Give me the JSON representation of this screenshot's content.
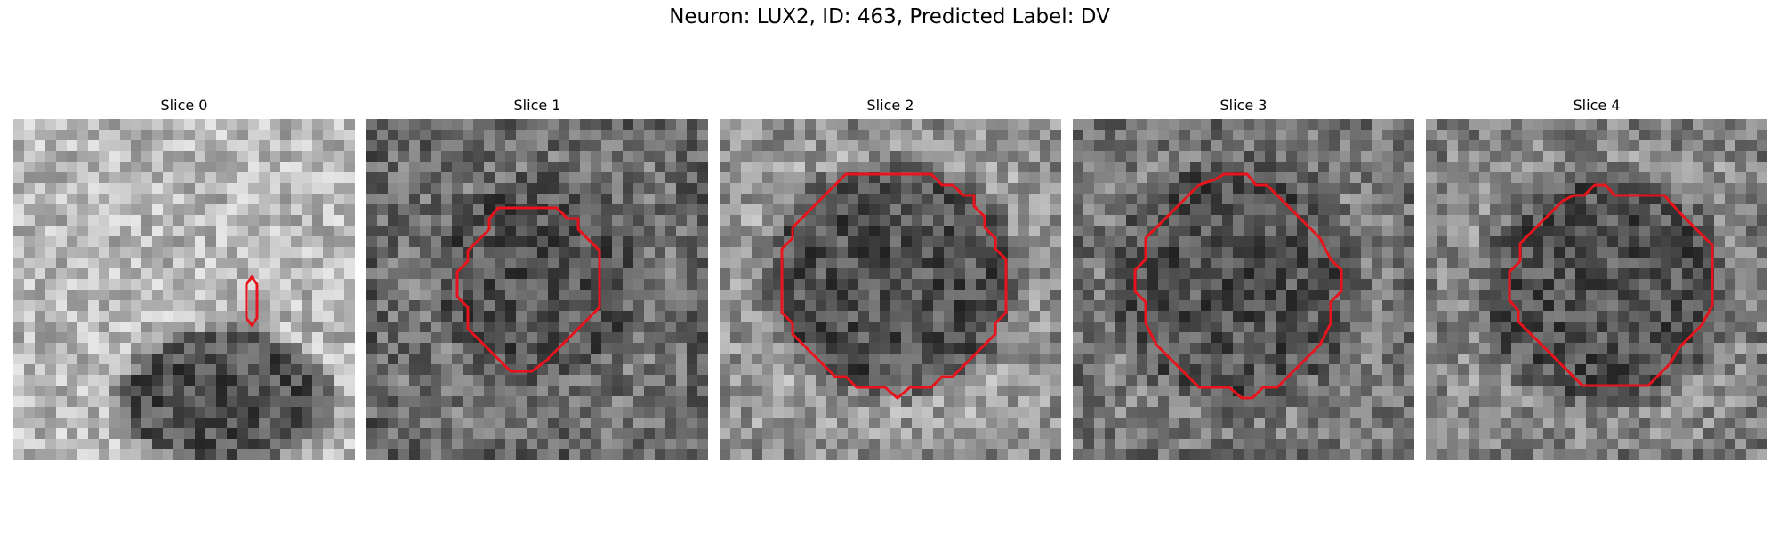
{
  "figure": {
    "title": "Neuron: LUX2, ID: 463, Predicted Label: DV"
  },
  "panels": [
    {
      "title": "Slice 0",
      "dark_blob": [
        0.62,
        0.82,
        0.27,
        0.18
      ],
      "brightness": 0.72,
      "outline_kind": "small"
    },
    {
      "title": "Slice 1",
      "dark_blob": [
        0.5,
        0.47,
        0.26,
        0.26
      ],
      "brightness": 0.45,
      "outline_kind": "medium"
    },
    {
      "title": "Slice 2",
      "dark_blob": [
        0.5,
        0.47,
        0.33,
        0.3
      ],
      "brightness": 0.62,
      "outline_kind": "large"
    },
    {
      "title": "Slice 3",
      "dark_blob": [
        0.48,
        0.48,
        0.32,
        0.32
      ],
      "brightness": 0.5,
      "outline_kind": "large"
    },
    {
      "title": "Slice 4",
      "dark_blob": [
        0.52,
        0.5,
        0.32,
        0.3
      ],
      "brightness": 0.55,
      "outline_kind": "medium"
    }
  ],
  "colors": {
    "outline": "#e8141c"
  }
}
